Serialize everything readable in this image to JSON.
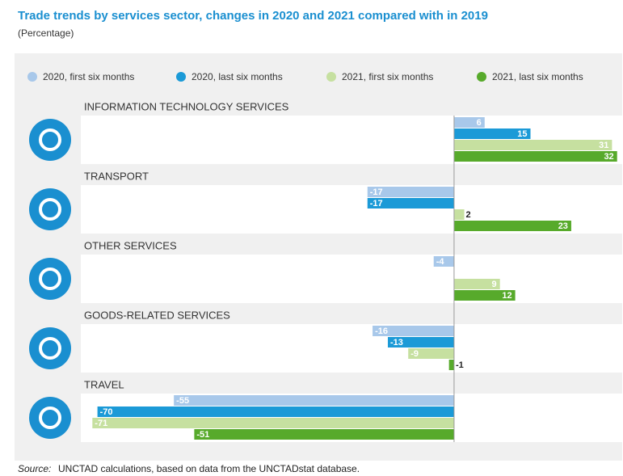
{
  "chart_data": {
    "type": "hbar",
    "title": "Trade trends by services sector, changes in 2020 and 2021 compared with in 2019",
    "subtitle": "(Percentage)",
    "categories": [
      "INFORMATION TECHNOLOGY SERVICES",
      "TRANSPORT",
      "OTHER SERVICES",
      "GOODS-RELATED SERVICES",
      "TRAVEL"
    ],
    "series": [
      {
        "name": "2020, first six months",
        "color": "#a8c8ea",
        "values": [
          6,
          -17,
          -4,
          -16,
          -55
        ]
      },
      {
        "name": "2020, last six months",
        "color": "#1b9ad7",
        "values": [
          15,
          -17,
          null,
          -13,
          -70
        ]
      },
      {
        "name": "2021, first six months",
        "color": "#c6e0a0",
        "values": [
          31,
          2,
          9,
          -9,
          -71
        ]
      },
      {
        "name": "2021, last six months",
        "color": "#57aa2b",
        "values": [
          32,
          23,
          12,
          -1,
          -51
        ]
      }
    ],
    "xlim": [
      -72,
      33
    ],
    "source_label": "Source:",
    "source": "UNCTAD calculations, based on data from the UNCTADstat database."
  }
}
